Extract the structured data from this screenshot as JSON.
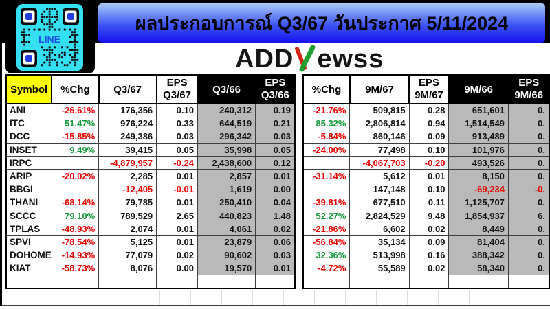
{
  "colors": {
    "positive": "#149a3c",
    "negative": "#e80000",
    "yellow": "#ffff00",
    "gray": "#b9b9b9",
    "banner_top": "#a9c9f8",
    "banner_bottom": "#1712ee"
  },
  "header": {
    "title": "ผลประกอบการณ์ Q3/67 วันประกาศ 5/11/2024",
    "qr_label": "LINE",
    "logo_pre": "ADD",
    "logo_post": "ewss"
  },
  "table": {
    "left_headers": {
      "symbol": "Symbol",
      "chg": "%Chg",
      "period": "Q3/67",
      "eps": "EPS",
      "eps_period": "Q3/67",
      "prev_period": "Q3/66",
      "prev_eps": "EPS",
      "prev_eps_period": "Q3/66"
    },
    "right_headers": {
      "chg": "%Chg",
      "period": "9M/67",
      "eps": "EPS",
      "eps_period": "9M/67",
      "prev_period": "9M/66",
      "prev_eps": "EPS",
      "prev_eps_period": "9M/66"
    },
    "rows": [
      {
        "symbol": "ANI",
        "q_chg": "-26.61%",
        "q_cur": "176,356",
        "q_eps_cur": "0.10",
        "q_prev": "240,312",
        "q_eps_prev": "0.19",
        "m_chg": "-21.76%",
        "m_cur": "509,815",
        "m_eps_cur": "0.28",
        "m_prev": "651,601",
        "m_eps_prev": "0."
      },
      {
        "symbol": "ITC",
        "q_chg": "51.47%",
        "q_cur": "976,224",
        "q_eps_cur": "0.33",
        "q_prev": "644,519",
        "q_eps_prev": "0.21",
        "m_chg": "85.32%",
        "m_cur": "2,806,814",
        "m_eps_cur": "0.94",
        "m_prev": "1,514,549",
        "m_eps_prev": "0."
      },
      {
        "symbol": "DCC",
        "q_chg": "-15.85%",
        "q_cur": "249,386",
        "q_eps_cur": "0.03",
        "q_prev": "296,342",
        "q_eps_prev": "0.03",
        "m_chg": "-5.84%",
        "m_cur": "860,146",
        "m_eps_cur": "0.09",
        "m_prev": "913,489",
        "m_eps_prev": "0."
      },
      {
        "symbol": "INSET",
        "q_chg": "9.49%",
        "q_cur": "39,415",
        "q_eps_cur": "0.05",
        "q_prev": "35,998",
        "q_eps_prev": "0.05",
        "m_chg": "-24.00%",
        "m_cur": "77,498",
        "m_eps_cur": "0.10",
        "m_prev": "101,976",
        "m_eps_prev": "0."
      },
      {
        "symbol": "IRPC",
        "q_chg": "",
        "q_cur": "-4,879,957",
        "q_eps_cur": "-0.24",
        "q_prev": "2,438,600",
        "q_eps_prev": "0.12",
        "m_chg": "",
        "m_cur": "-4,067,703",
        "m_eps_cur": "-0.20",
        "m_prev": "493,526",
        "m_eps_prev": "0."
      },
      {
        "symbol": "ARIP",
        "q_chg": "-20.02%",
        "q_cur": "2,285",
        "q_eps_cur": "0.01",
        "q_prev": "2,857",
        "q_eps_prev": "0.01",
        "m_chg": "-31.14%",
        "m_cur": "5,612",
        "m_eps_cur": "0.01",
        "m_prev": "8,150",
        "m_eps_prev": "0."
      },
      {
        "symbol": "BBGI",
        "q_chg": "",
        "q_cur": "-12,405",
        "q_eps_cur": "-0.01",
        "q_prev": "1,619",
        "q_eps_prev": "0.00",
        "m_chg": "",
        "m_cur": "147,148",
        "m_eps_cur": "0.10",
        "m_prev": "-69,234",
        "m_eps_prev": "-0."
      },
      {
        "symbol": "THANI",
        "q_chg": "-68.14%",
        "q_cur": "79,785",
        "q_eps_cur": "0.01",
        "q_prev": "250,410",
        "q_eps_prev": "0.04",
        "m_chg": "-39.81%",
        "m_cur": "677,510",
        "m_eps_cur": "0.11",
        "m_prev": "1,125,707",
        "m_eps_prev": "0."
      },
      {
        "symbol": "SCCC",
        "q_chg": "79.10%",
        "q_cur": "789,529",
        "q_eps_cur": "2.65",
        "q_prev": "440,823",
        "q_eps_prev": "1.48",
        "m_chg": "52.27%",
        "m_cur": "2,824,529",
        "m_eps_cur": "9.48",
        "m_prev": "1,854,937",
        "m_eps_prev": "6."
      },
      {
        "symbol": "TPLAS",
        "q_chg": "-48.93%",
        "q_cur": "2,074",
        "q_eps_cur": "0.01",
        "q_prev": "4,061",
        "q_eps_prev": "0.02",
        "m_chg": "-21.86%",
        "m_cur": "6,602",
        "m_eps_cur": "0.02",
        "m_prev": "8,449",
        "m_eps_prev": "0."
      },
      {
        "symbol": "SPVI",
        "q_chg": "-78.54%",
        "q_cur": "5,125",
        "q_eps_cur": "0.01",
        "q_prev": "23,879",
        "q_eps_prev": "0.06",
        "m_chg": "-56.84%",
        "m_cur": "35,134",
        "m_eps_cur": "0.09",
        "m_prev": "81,404",
        "m_eps_prev": "0."
      },
      {
        "symbol": "DOHOME",
        "q_chg": "-14.93%",
        "q_cur": "77,079",
        "q_eps_cur": "0.02",
        "q_prev": "90,602",
        "q_eps_prev": "0.03",
        "m_chg": "32.36%",
        "m_cur": "513,998",
        "m_eps_cur": "0.16",
        "m_prev": "388,342",
        "m_eps_prev": "0."
      },
      {
        "symbol": "KIAT",
        "q_chg": "-58.73%",
        "q_cur": "8,076",
        "q_eps_cur": "0.00",
        "q_prev": "19,570",
        "q_eps_prev": "0.01",
        "m_chg": "-4.72%",
        "m_cur": "55,589",
        "m_eps_cur": "0.02",
        "m_prev": "58,340",
        "m_eps_prev": "0."
      },
      {
        "symbol": "",
        "q_chg": "",
        "q_cur": "",
        "q_eps_cur": "",
        "q_prev": "",
        "q_eps_prev": "",
        "m_chg": "",
        "m_cur": "",
        "m_eps_cur": "",
        "m_prev": "",
        "m_eps_prev": ""
      }
    ]
  }
}
